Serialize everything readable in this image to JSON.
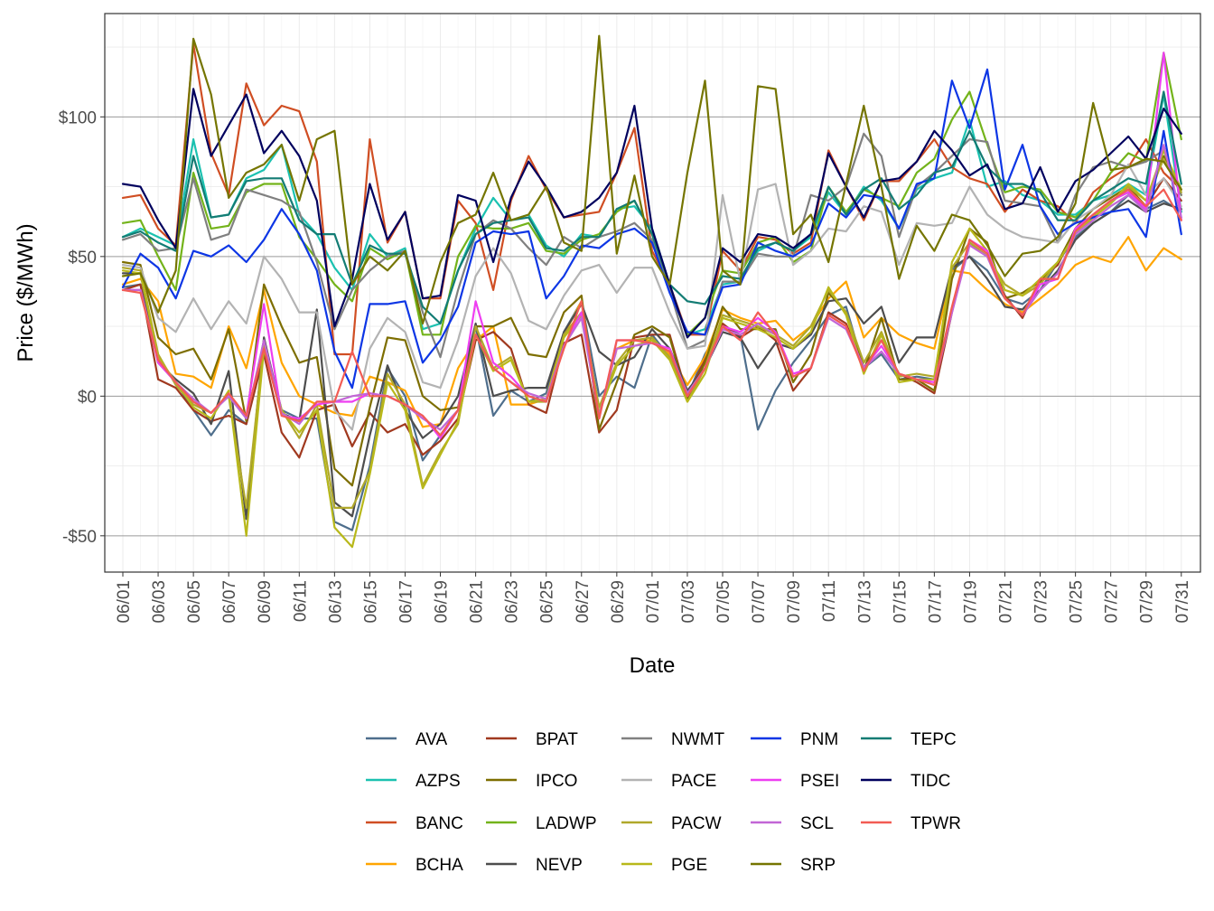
{
  "chart_data": {
    "type": "line",
    "xlabel": "Date",
    "ylabel": "Price ($/MWh)",
    "ylim": [
      -63,
      137
    ],
    "y_ticks": [
      {
        "value": 100,
        "label": "$100"
      },
      {
        "value": 50,
        "label": "$50"
      },
      {
        "value": 0,
        "label": "$0"
      },
      {
        "value": -50,
        "label": "-$50"
      }
    ],
    "x": [
      "06/01",
      "06/02",
      "06/03",
      "06/04",
      "06/05",
      "06/06",
      "06/07",
      "06/08",
      "06/09",
      "06/10",
      "06/11",
      "06/12",
      "06/13",
      "06/14",
      "06/15",
      "06/16",
      "06/17",
      "06/18",
      "06/19",
      "06/20",
      "06/21",
      "06/22",
      "06/23",
      "06/24",
      "06/25",
      "06/26",
      "06/27",
      "06/28",
      "06/29",
      "06/30",
      "07/01",
      "07/02",
      "07/03",
      "07/04",
      "07/05",
      "07/06",
      "07/07",
      "07/08",
      "07/09",
      "07/10",
      "07/11",
      "07/12",
      "07/13",
      "07/14",
      "07/15",
      "07/16",
      "07/17",
      "07/18",
      "07/19",
      "07/20",
      "07/21",
      "07/22",
      "07/23",
      "07/24",
      "07/25",
      "07/26",
      "07/27",
      "07/28",
      "07/29",
      "07/30",
      "07/31"
    ],
    "x_tick_labels": [
      "06/01",
      "06/03",
      "06/05",
      "06/07",
      "06/09",
      "06/11",
      "06/13",
      "06/15",
      "06/17",
      "06/19",
      "06/21",
      "06/23",
      "06/25",
      "06/27",
      "06/29",
      "07/01",
      "07/03",
      "07/05",
      "07/07",
      "07/09",
      "07/11",
      "07/13",
      "07/15",
      "07/17",
      "07/19",
      "07/21",
      "07/23",
      "07/25",
      "07/27",
      "07/29",
      "07/31"
    ],
    "grid": true,
    "legend_position": "bottom",
    "series": [
      {
        "name": "AVA",
        "color": "#4e6e8c",
        "values": [
          39,
          40,
          12,
          5,
          -5,
          -14,
          -5,
          -10,
          20,
          -5,
          -8,
          -8,
          -45,
          -48,
          -25,
          10,
          0,
          -23,
          -14,
          -5,
          25,
          -7,
          2,
          -2,
          1,
          23,
          34,
          0,
          7,
          3,
          22,
          14,
          0,
          15,
          25,
          22,
          -12,
          2,
          12,
          20,
          29,
          32,
          10,
          15,
          6,
          7,
          6,
          45,
          50,
          45,
          35,
          33,
          38,
          48,
          57,
          62,
          66,
          72,
          67,
          70,
          66
        ]
      },
      {
        "name": "AZPS",
        "color": "#1bc1b0",
        "values": [
          57,
          60,
          57,
          54,
          92,
          64,
          65,
          78,
          81,
          90,
          65,
          58,
          46,
          38,
          58,
          50,
          53,
          24,
          26,
          45,
          60,
          71,
          63,
          65,
          54,
          50,
          58,
          57,
          67,
          68,
          60,
          40,
          22,
          24,
          40,
          41,
          52,
          55,
          52,
          57,
          73,
          65,
          75,
          70,
          60,
          74,
          78,
          80,
          99,
          75,
          77,
          72,
          70,
          65,
          65,
          70,
          72,
          76,
          72,
          108,
          66
        ]
      },
      {
        "name": "BANC",
        "color": "#d04e23",
        "values": [
          71,
          72,
          60,
          54,
          126,
          87,
          72,
          112,
          97,
          104,
          102,
          84,
          15,
          15,
          92,
          55,
          66,
          35,
          35,
          70,
          62,
          38,
          70,
          86,
          74,
          64,
          65,
          66,
          80,
          96,
          52,
          40,
          22,
          22,
          52,
          45,
          57,
          56,
          51,
          55,
          88,
          75,
          63,
          77,
          77,
          84,
          92,
          82,
          78,
          76,
          66,
          74,
          70,
          68,
          62,
          73,
          78,
          82,
          92,
          80,
          74
        ]
      },
      {
        "name": "BCHA",
        "color": "#ffa500",
        "values": [
          40,
          42,
          34,
          8,
          7,
          3,
          25,
          10,
          38,
          12,
          0,
          -3,
          -6,
          -7,
          7,
          5,
          2,
          -11,
          -10,
          10,
          20,
          25,
          -3,
          -3,
          -1,
          22,
          34,
          -7,
          17,
          20,
          20,
          15,
          4,
          14,
          31,
          28,
          26,
          27,
          20,
          25,
          35,
          41,
          21,
          28,
          22,
          19,
          17,
          45,
          44,
          38,
          33,
          30,
          35,
          40,
          47,
          50,
          48,
          57,
          45,
          53,
          49
        ]
      },
      {
        "name": "BPAT",
        "color": "#a0391f",
        "values": [
          38,
          40,
          6,
          3,
          -5,
          -9,
          -7,
          -10,
          15,
          -13,
          -22,
          -5,
          -3,
          -18,
          -6,
          -13,
          -10,
          -21,
          -16,
          -8,
          20,
          23,
          17,
          -3,
          -6,
          19,
          22,
          -13,
          -5,
          21,
          22,
          22,
          0,
          13,
          26,
          21,
          25,
          20,
          2,
          10,
          30,
          26,
          10,
          20,
          8,
          5,
          1,
          30,
          55,
          50,
          36,
          28,
          42,
          47,
          60,
          65,
          70,
          73,
          68,
          78,
          70
        ]
      },
      {
        "name": "IPCO",
        "color": "#7d6e00",
        "values": [
          48,
          47,
          21,
          15,
          17,
          6,
          24,
          -9,
          40,
          25,
          12,
          14,
          -26,
          -32,
          -4,
          21,
          20,
          0,
          -5,
          -4,
          25,
          25,
          28,
          15,
          14,
          30,
          36,
          -12,
          5,
          22,
          25,
          21,
          -1,
          12,
          32,
          24,
          24,
          24,
          5,
          15,
          37,
          30,
          9,
          28,
          6,
          6,
          2,
          42,
          60,
          55,
          35,
          37,
          41,
          48,
          60,
          67,
          71,
          75,
          68,
          86,
          72
        ]
      },
      {
        "name": "LADWP",
        "color": "#73b31a",
        "values": [
          62,
          63,
          50,
          38,
          80,
          60,
          61,
          73,
          76,
          76,
          57,
          49,
          40,
          34,
          53,
          49,
          52,
          22,
          22,
          50,
          61,
          60,
          60,
          62,
          52,
          51,
          56,
          58,
          66,
          70,
          58,
          38,
          22,
          28,
          45,
          44,
          55,
          57,
          48,
          52,
          75,
          66,
          74,
          71,
          68,
          80,
          85,
          99,
          109,
          90,
          73,
          75,
          74,
          66,
          64,
          70,
          80,
          87,
          84,
          123,
          92
        ]
      },
      {
        "name": "NEVP",
        "color": "#4d4d4d",
        "values": [
          44,
          44,
          12,
          6,
          1,
          -10,
          9,
          -44,
          21,
          -6,
          -9,
          31,
          -38,
          -43,
          -14,
          11,
          -5,
          -15,
          -10,
          0,
          26,
          0,
          2,
          3,
          3,
          23,
          33,
          16,
          11,
          14,
          24,
          17,
          2,
          10,
          23,
          21,
          10,
          19,
          17,
          22,
          34,
          35,
          26,
          32,
          12,
          21,
          21,
          46,
          50,
          42,
          32,
          31,
          38,
          45,
          56,
          62,
          66,
          70,
          66,
          69,
          67
        ]
      },
      {
        "name": "NWMT",
        "color": "#808080",
        "values": [
          56,
          58,
          52,
          53,
          78,
          56,
          58,
          74,
          72,
          70,
          66,
          48,
          24,
          38,
          45,
          50,
          52,
          30,
          14,
          38,
          58,
          63,
          60,
          53,
          47,
          57,
          53,
          57,
          59,
          62,
          56,
          38,
          17,
          20,
          41,
          41,
          51,
          50,
          50,
          72,
          70,
          75,
          94,
          86,
          57,
          75,
          80,
          86,
          92,
          91,
          70,
          69,
          68,
          55,
          72,
          82,
          84,
          82,
          84,
          88,
          72
        ]
      },
      {
        "name": "PACE",
        "color": "#b3b3b3",
        "values": [
          47,
          46,
          28,
          23,
          35,
          24,
          34,
          26,
          50,
          42,
          30,
          30,
          -5,
          -12,
          17,
          28,
          23,
          5,
          3,
          20,
          43,
          53,
          44,
          27,
          24,
          36,
          45,
          47,
          37,
          46,
          46,
          30,
          17,
          18,
          72,
          41,
          74,
          76,
          47,
          52,
          60,
          59,
          68,
          66,
          47,
          62,
          61,
          62,
          75,
          65,
          60,
          57,
          56,
          55,
          63,
          67,
          72,
          83,
          72,
          78,
          68
        ]
      },
      {
        "name": "PACW",
        "color": "#b0a82b",
        "values": [
          46,
          45,
          15,
          4,
          -3,
          -6,
          0,
          -40,
          19,
          -5,
          -15,
          -3,
          -40,
          -40,
          -27,
          8,
          -3,
          -32,
          -20,
          -10,
          25,
          10,
          14,
          -2,
          -2,
          22,
          30,
          -4,
          12,
          20,
          21,
          14,
          -2,
          10,
          29,
          27,
          25,
          22,
          18,
          25,
          38,
          30,
          12,
          23,
          7,
          8,
          7,
          46,
          55,
          50,
          40,
          36,
          40,
          48,
          58,
          64,
          69,
          75,
          70,
          85,
          73
        ]
      },
      {
        "name": "PGE",
        "color": "#b8b81a",
        "values": [
          45,
          44,
          14,
          5,
          -4,
          -8,
          2,
          -50,
          17,
          -5,
          -13,
          -5,
          -47,
          -54,
          -28,
          5,
          -5,
          -33,
          -21,
          -9,
          22,
          9,
          13,
          -2,
          -1,
          21,
          29,
          -6,
          11,
          18,
          20,
          13,
          -2,
          8,
          28,
          26,
          24,
          21,
          17,
          23,
          39,
          29,
          8,
          22,
          5,
          6,
          6,
          48,
          60,
          52,
          38,
          36,
          42,
          48,
          58,
          64,
          69,
          76,
          70,
          88,
          74
        ]
      },
      {
        "name": "PNM",
        "color": "#0d36e5",
        "values": [
          39,
          51,
          46,
          35,
          52,
          50,
          54,
          48,
          56,
          67,
          58,
          45,
          16,
          3,
          33,
          33,
          34,
          12,
          20,
          32,
          55,
          59,
          58,
          59,
          35,
          43,
          54,
          53,
          58,
          60,
          55,
          37,
          23,
          22,
          39,
          40,
          55,
          52,
          50,
          54,
          69,
          64,
          72,
          71,
          60,
          76,
          78,
          113,
          96,
          117,
          74,
          90,
          68,
          58,
          62,
          64,
          66,
          67,
          57,
          95,
          58
        ]
      },
      {
        "name": "PSEI",
        "color": "#ee3ef1",
        "values": [
          38,
          38,
          12,
          5,
          -2,
          -6,
          0,
          -7,
          33,
          -7,
          -8,
          -3,
          -2,
          -2,
          1,
          0,
          -3,
          -7,
          -15,
          -5,
          34,
          12,
          7,
          0,
          -2,
          18,
          30,
          -8,
          20,
          20,
          19,
          17,
          0,
          10,
          25,
          23,
          28,
          23,
          8,
          10,
          29,
          25,
          10,
          18,
          8,
          6,
          5,
          30,
          56,
          52,
          35,
          29,
          40,
          42,
          60,
          65,
          70,
          73,
          67,
          123,
          63
        ]
      },
      {
        "name": "SCL",
        "color": "#c266d6",
        "values": [
          38,
          38,
          13,
          5,
          -1,
          -6,
          0,
          -8,
          20,
          -6,
          -10,
          -2,
          -2,
          0,
          1,
          0,
          -3,
          -8,
          -12,
          -5,
          22,
          10,
          5,
          1,
          -1,
          18,
          28,
          -7,
          17,
          18,
          19,
          16,
          1,
          10,
          24,
          22,
          26,
          22,
          7,
          10,
          28,
          24,
          10,
          16,
          8,
          6,
          4,
          30,
          54,
          50,
          35,
          29,
          38,
          44,
          58,
          63,
          68,
          72,
          66,
          90,
          64
        ]
      },
      {
        "name": "TEPC",
        "color": "#137c74",
        "values": [
          57,
          59,
          55,
          52,
          86,
          64,
          65,
          77,
          78,
          78,
          63,
          58,
          58,
          40,
          54,
          51,
          51,
          32,
          26,
          45,
          58,
          62,
          63,
          64,
          53,
          52,
          57,
          57,
          67,
          70,
          58,
          40,
          34,
          33,
          43,
          42,
          53,
          55,
          52,
          58,
          75,
          65,
          74,
          78,
          67,
          72,
          80,
          82,
          95,
          82,
          76,
          76,
          73,
          63,
          63,
          70,
          74,
          78,
          76,
          109,
          76
        ]
      },
      {
        "name": "TIDC",
        "color": "#00005e",
        "values": [
          76,
          75,
          63,
          53,
          110,
          86,
          97,
          108,
          87,
          95,
          86,
          70,
          25,
          42,
          76,
          56,
          66,
          35,
          36,
          72,
          70,
          48,
          71,
          84,
          75,
          64,
          66,
          71,
          80,
          104,
          60,
          40,
          21,
          28,
          53,
          48,
          58,
          57,
          53,
          58,
          87,
          75,
          64,
          77,
          78,
          84,
          95,
          88,
          79,
          83,
          67,
          69,
          82,
          66,
          77,
          81,
          87,
          93,
          85,
          103,
          94
        ]
      },
      {
        "name": "TPWR",
        "color": "#f25c54",
        "values": [
          38,
          37,
          13,
          5,
          -2,
          -6,
          1,
          -7,
          17,
          -7,
          -9,
          -2,
          -2,
          16,
          0,
          0,
          -3,
          -7,
          -14,
          -5,
          22,
          10,
          5,
          0,
          -2,
          17,
          34,
          -8,
          20,
          20,
          19,
          16,
          0,
          10,
          25,
          20,
          30,
          22,
          7,
          10,
          29,
          25,
          9,
          20,
          8,
          6,
          4,
          32,
          56,
          51,
          35,
          29,
          42,
          42,
          59,
          65,
          70,
          74,
          68,
          74,
          63
        ]
      },
      {
        "name": "SRP",
        "color": "#757500",
        "values": [
          43,
          44,
          30,
          45,
          128,
          108,
          71,
          80,
          83,
          90,
          70,
          92,
          95,
          40,
          50,
          45,
          52,
          26,
          48,
          62,
          65,
          80,
          63,
          65,
          75,
          55,
          52,
          129,
          51,
          79,
          50,
          40,
          80,
          113,
          45,
          40,
          111,
          110,
          58,
          65,
          48,
          76,
          104,
          75,
          42,
          61,
          52,
          65,
          63,
          54,
          43,
          51,
          52,
          57,
          69,
          105,
          81,
          82,
          85,
          84,
          74
        ]
      }
    ]
  }
}
